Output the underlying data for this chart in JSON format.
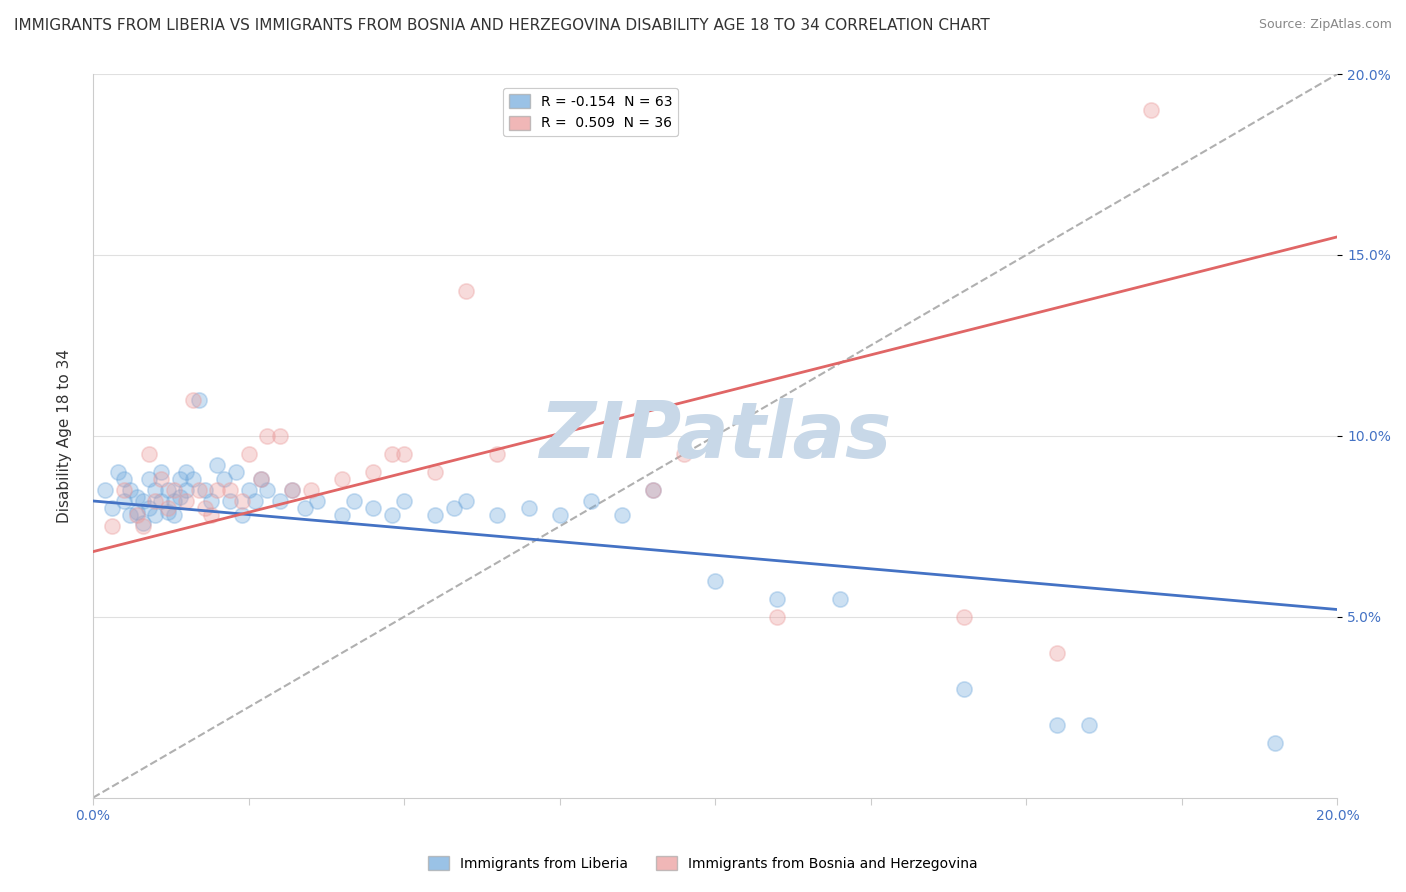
{
  "title": "IMMIGRANTS FROM LIBERIA VS IMMIGRANTS FROM BOSNIA AND HERZEGOVINA DISABILITY AGE 18 TO 34 CORRELATION CHART",
  "source": "Source: ZipAtlas.com",
  "ylabel": "Disability Age 18 to 34",
  "xlim": [
    0.0,
    0.2
  ],
  "ylim": [
    0.0,
    0.2
  ],
  "xticks": [
    0.0,
    0.025,
    0.05,
    0.075,
    0.1,
    0.125,
    0.15,
    0.175,
    0.2
  ],
  "yticks": [
    0.05,
    0.1,
    0.15,
    0.2
  ],
  "right_yticks": [
    0.05,
    0.1,
    0.15,
    0.2
  ],
  "legend_entries": [
    {
      "label": "R = -0.154  N = 63",
      "color": "#6fa8dc"
    },
    {
      "label": "R =  0.509  N = 36",
      "color": "#ea9999"
    }
  ],
  "series_liberia": {
    "color": "#6fa8dc",
    "x": [
      0.002,
      0.003,
      0.004,
      0.005,
      0.005,
      0.006,
      0.006,
      0.007,
      0.007,
      0.008,
      0.008,
      0.009,
      0.009,
      0.01,
      0.01,
      0.011,
      0.011,
      0.012,
      0.012,
      0.013,
      0.013,
      0.014,
      0.014,
      0.015,
      0.015,
      0.016,
      0.017,
      0.018,
      0.019,
      0.02,
      0.021,
      0.022,
      0.023,
      0.024,
      0.025,
      0.026,
      0.027,
      0.028,
      0.03,
      0.032,
      0.034,
      0.036,
      0.04,
      0.042,
      0.045,
      0.048,
      0.05,
      0.055,
      0.058,
      0.06,
      0.065,
      0.07,
      0.075,
      0.08,
      0.085,
      0.09,
      0.1,
      0.11,
      0.12,
      0.14,
      0.155,
      0.16,
      0.19
    ],
    "y": [
      0.085,
      0.08,
      0.09,
      0.088,
      0.082,
      0.078,
      0.085,
      0.079,
      0.083,
      0.076,
      0.082,
      0.08,
      0.088,
      0.078,
      0.085,
      0.082,
      0.09,
      0.079,
      0.085,
      0.082,
      0.078,
      0.088,
      0.083,
      0.085,
      0.09,
      0.088,
      0.11,
      0.085,
      0.082,
      0.092,
      0.088,
      0.082,
      0.09,
      0.078,
      0.085,
      0.082,
      0.088,
      0.085,
      0.082,
      0.085,
      0.08,
      0.082,
      0.078,
      0.082,
      0.08,
      0.078,
      0.082,
      0.078,
      0.08,
      0.082,
      0.078,
      0.08,
      0.078,
      0.082,
      0.078,
      0.085,
      0.06,
      0.055,
      0.055,
      0.03,
      0.02,
      0.02,
      0.015
    ]
  },
  "series_bosnia": {
    "color": "#ea9999",
    "x": [
      0.003,
      0.005,
      0.007,
      0.008,
      0.009,
      0.01,
      0.011,
      0.012,
      0.013,
      0.015,
      0.016,
      0.017,
      0.018,
      0.019,
      0.02,
      0.022,
      0.024,
      0.025,
      0.027,
      0.028,
      0.03,
      0.032,
      0.035,
      0.04,
      0.045,
      0.048,
      0.05,
      0.055,
      0.06,
      0.065,
      0.09,
      0.095,
      0.11,
      0.14,
      0.155,
      0.17
    ],
    "y": [
      0.075,
      0.085,
      0.078,
      0.075,
      0.095,
      0.082,
      0.088,
      0.08,
      0.085,
      0.082,
      0.11,
      0.085,
      0.08,
      0.078,
      0.085,
      0.085,
      0.082,
      0.095,
      0.088,
      0.1,
      0.1,
      0.085,
      0.085,
      0.088,
      0.09,
      0.095,
      0.095,
      0.09,
      0.14,
      0.095,
      0.085,
      0.095,
      0.05,
      0.05,
      0.04,
      0.19
    ]
  },
  "trend_liberia": {
    "x_start": 0.0,
    "x_end": 0.2,
    "y_start": 0.082,
    "y_end": 0.052,
    "color": "#4472c4",
    "lw": 2.0
  },
  "trend_bosnia": {
    "x_start": 0.0,
    "x_end": 0.2,
    "y_start": 0.068,
    "y_end": 0.155,
    "color": "#e06666",
    "lw": 2.0
  },
  "diag_line": {
    "color": "#b0b0b0",
    "lw": 1.5,
    "linestyle": "--"
  },
  "watermark": "ZIPatlas",
  "watermark_color": "#c8d8e8",
  "bg_color": "#ffffff",
  "grid_color": "#e0e0e0",
  "title_fontsize": 11,
  "axis_label_fontsize": 11,
  "tick_fontsize": 10,
  "legend_fontsize": 10,
  "marker_size": 120,
  "marker_alpha": 0.35
}
